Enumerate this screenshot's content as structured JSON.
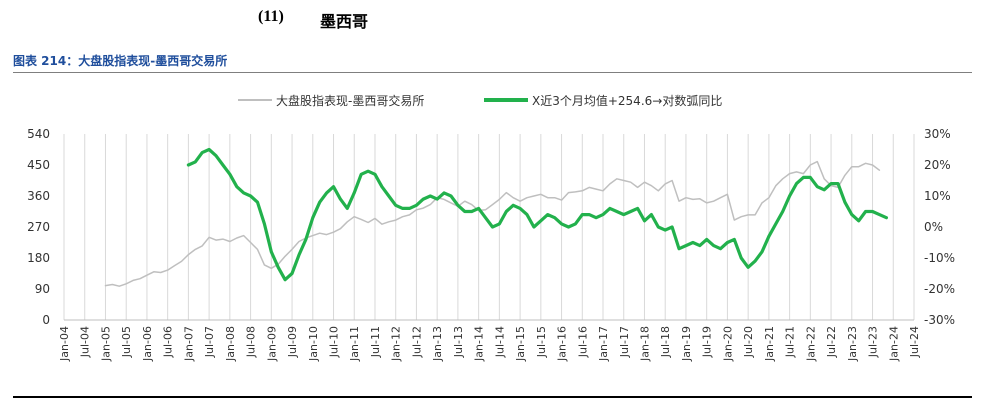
{
  "header": {
    "section_number": "(11)",
    "section_title": "墨西哥"
  },
  "figure": {
    "caption": "图表 214：大盘股指表现-墨西哥交易所"
  },
  "chart_data": {
    "type": "line",
    "title": "",
    "legend_position": "top",
    "grid": {
      "vertical": true,
      "horizontal": false
    },
    "x_axis": {
      "start": "2004-01",
      "end": "2024-07",
      "tick_labels": [
        "Jan-04",
        "Jul-04",
        "Jan-05",
        "Jul-05",
        "Jan-06",
        "Jul-06",
        "Jan-07",
        "Jul-07",
        "Jan-08",
        "Jul-08",
        "Jan-09",
        "Jul-09",
        "Jan-10",
        "Jul-10",
        "Jan-11",
        "Jul-11",
        "Jan-12",
        "Jul-12",
        "Jan-13",
        "Jul-13",
        "Jan-14",
        "Jul-14",
        "Jan-15",
        "Jul-15",
        "Jan-16",
        "Jul-16",
        "Jan-17",
        "Jul-17",
        "Jan-18",
        "Jul-18",
        "Jan-19",
        "Jul-19",
        "Jan-20",
        "Jul-20",
        "Jan-21",
        "Jul-21",
        "Jan-22",
        "Jul-22",
        "Jan-23",
        "Jul-23",
        "Jan-24",
        "Jul-24"
      ]
    },
    "y_left": {
      "min": 0,
      "max": 540,
      "ticks": [
        "0",
        "90",
        "180",
        "270",
        "360",
        "450",
        "540"
      ]
    },
    "y_right": {
      "min": -30,
      "max": 30,
      "ticks": [
        "-30%",
        "-20%",
        "-10%",
        "0%",
        "10%",
        "20%",
        "30%"
      ]
    },
    "series": [
      {
        "name": "大盘股指表现-墨西哥交易所",
        "axis": "left",
        "color": "#bfbfbf",
        "points": [
          [
            "2005-01",
            100
          ],
          [
            "2005-03",
            103
          ],
          [
            "2005-05",
            98
          ],
          [
            "2005-07",
            105
          ],
          [
            "2005-09",
            115
          ],
          [
            "2005-11",
            120
          ],
          [
            "2006-01",
            130
          ],
          [
            "2006-03",
            140
          ],
          [
            "2006-05",
            138
          ],
          [
            "2006-07",
            145
          ],
          [
            "2006-09",
            158
          ],
          [
            "2006-11",
            170
          ],
          [
            "2007-01",
            190
          ],
          [
            "2007-03",
            205
          ],
          [
            "2007-05",
            215
          ],
          [
            "2007-07",
            240
          ],
          [
            "2007-09",
            232
          ],
          [
            "2007-11",
            235
          ],
          [
            "2008-01",
            228
          ],
          [
            "2008-03",
            238
          ],
          [
            "2008-05",
            245
          ],
          [
            "2008-07",
            225
          ],
          [
            "2008-09",
            205
          ],
          [
            "2008-11",
            160
          ],
          [
            "2009-01",
            150
          ],
          [
            "2009-03",
            162
          ],
          [
            "2009-05",
            185
          ],
          [
            "2009-07",
            205
          ],
          [
            "2009-09",
            228
          ],
          [
            "2009-11",
            238
          ],
          [
            "2010-01",
            245
          ],
          [
            "2010-03",
            252
          ],
          [
            "2010-05",
            248
          ],
          [
            "2010-07",
            255
          ],
          [
            "2010-09",
            265
          ],
          [
            "2010-11",
            285
          ],
          [
            "2011-01",
            300
          ],
          [
            "2011-03",
            292
          ],
          [
            "2011-05",
            283
          ],
          [
            "2011-07",
            295
          ],
          [
            "2011-09",
            278
          ],
          [
            "2011-11",
            285
          ],
          [
            "2012-01",
            290
          ],
          [
            "2012-03",
            300
          ],
          [
            "2012-05",
            305
          ],
          [
            "2012-07",
            320
          ],
          [
            "2012-09",
            325
          ],
          [
            "2012-11",
            335
          ],
          [
            "2013-01",
            355
          ],
          [
            "2013-03",
            350
          ],
          [
            "2013-05",
            340
          ],
          [
            "2013-07",
            330
          ],
          [
            "2013-09",
            345
          ],
          [
            "2013-11",
            335
          ],
          [
            "2014-01",
            318
          ],
          [
            "2014-03",
            320
          ],
          [
            "2014-05",
            335
          ],
          [
            "2014-07",
            350
          ],
          [
            "2014-09",
            370
          ],
          [
            "2014-11",
            355
          ],
          [
            "2015-01",
            345
          ],
          [
            "2015-03",
            355
          ],
          [
            "2015-05",
            360
          ],
          [
            "2015-07",
            365
          ],
          [
            "2015-09",
            355
          ],
          [
            "2015-11",
            355
          ],
          [
            "2016-01",
            348
          ],
          [
            "2016-03",
            370
          ],
          [
            "2016-05",
            372
          ],
          [
            "2016-07",
            375
          ],
          [
            "2016-09",
            385
          ],
          [
            "2016-11",
            380
          ],
          [
            "2017-01",
            375
          ],
          [
            "2017-03",
            395
          ],
          [
            "2017-05",
            410
          ],
          [
            "2017-07",
            405
          ],
          [
            "2017-09",
            400
          ],
          [
            "2017-11",
            385
          ],
          [
            "2018-01",
            400
          ],
          [
            "2018-03",
            390
          ],
          [
            "2018-05",
            375
          ],
          [
            "2018-07",
            395
          ],
          [
            "2018-09",
            405
          ],
          [
            "2018-11",
            345
          ],
          [
            "2019-01",
            355
          ],
          [
            "2019-03",
            350
          ],
          [
            "2019-05",
            352
          ],
          [
            "2019-07",
            340
          ],
          [
            "2019-09",
            345
          ],
          [
            "2019-11",
            355
          ],
          [
            "2020-01",
            365
          ],
          [
            "2020-03",
            290
          ],
          [
            "2020-05",
            300
          ],
          [
            "2020-07",
            305
          ],
          [
            "2020-09",
            305
          ],
          [
            "2020-11",
            340
          ],
          [
            "2021-01",
            355
          ],
          [
            "2021-03",
            390
          ],
          [
            "2021-05",
            410
          ],
          [
            "2021-07",
            425
          ],
          [
            "2021-09",
            430
          ],
          [
            "2021-11",
            425
          ],
          [
            "2022-01",
            450
          ],
          [
            "2022-03",
            460
          ],
          [
            "2022-05",
            410
          ],
          [
            "2022-07",
            390
          ],
          [
            "2022-09",
            385
          ],
          [
            "2022-11",
            420
          ],
          [
            "2023-01",
            445
          ],
          [
            "2023-03",
            445
          ],
          [
            "2023-05",
            455
          ],
          [
            "2023-07",
            450
          ],
          [
            "2023-09",
            435
          ]
        ]
      },
      {
        "name": "X近3个月均值+254.6→对数弧同比",
        "axis": "right",
        "color": "#22b14c",
        "points": [
          [
            "2007-01",
            20
          ],
          [
            "2007-03",
            21
          ],
          [
            "2007-05",
            24
          ],
          [
            "2007-07",
            25
          ],
          [
            "2007-09",
            23
          ],
          [
            "2007-11",
            20
          ],
          [
            "2008-01",
            17
          ],
          [
            "2008-03",
            13
          ],
          [
            "2008-05",
            11
          ],
          [
            "2008-07",
            10
          ],
          [
            "2008-09",
            8
          ],
          [
            "2008-11",
            1
          ],
          [
            "2009-01",
            -8
          ],
          [
            "2009-03",
            -13
          ],
          [
            "2009-05",
            -17
          ],
          [
            "2009-07",
            -15
          ],
          [
            "2009-09",
            -9
          ],
          [
            "2009-11",
            -4
          ],
          [
            "2010-01",
            3
          ],
          [
            "2010-03",
            8
          ],
          [
            "2010-05",
            11
          ],
          [
            "2010-07",
            13
          ],
          [
            "2010-09",
            9
          ],
          [
            "2010-11",
            6
          ],
          [
            "2011-01",
            11
          ],
          [
            "2011-03",
            17
          ],
          [
            "2011-05",
            18
          ],
          [
            "2011-07",
            17
          ],
          [
            "2011-09",
            13
          ],
          [
            "2011-11",
            10
          ],
          [
            "2012-01",
            7
          ],
          [
            "2012-03",
            6
          ],
          [
            "2012-05",
            6
          ],
          [
            "2012-07",
            7
          ],
          [
            "2012-09",
            9
          ],
          [
            "2012-11",
            10
          ],
          [
            "2013-01",
            9
          ],
          [
            "2013-03",
            11
          ],
          [
            "2013-05",
            10
          ],
          [
            "2013-07",
            7
          ],
          [
            "2013-09",
            5
          ],
          [
            "2013-11",
            5
          ],
          [
            "2014-01",
            6
          ],
          [
            "2014-03",
            3
          ],
          [
            "2014-05",
            0
          ],
          [
            "2014-07",
            1
          ],
          [
            "2014-09",
            5
          ],
          [
            "2014-11",
            7
          ],
          [
            "2015-01",
            6
          ],
          [
            "2015-03",
            4
          ],
          [
            "2015-05",
            0
          ],
          [
            "2015-07",
            2
          ],
          [
            "2015-09",
            4
          ],
          [
            "2015-11",
            3
          ],
          [
            "2016-01",
            1
          ],
          [
            "2016-03",
            0
          ],
          [
            "2016-05",
            1
          ],
          [
            "2016-07",
            4
          ],
          [
            "2016-09",
            4
          ],
          [
            "2016-11",
            3
          ],
          [
            "2017-01",
            4
          ],
          [
            "2017-03",
            6
          ],
          [
            "2017-05",
            5
          ],
          [
            "2017-07",
            4
          ],
          [
            "2017-09",
            5
          ],
          [
            "2017-11",
            6
          ],
          [
            "2018-01",
            2
          ],
          [
            "2018-03",
            4
          ],
          [
            "2018-05",
            0
          ],
          [
            "2018-07",
            -1
          ],
          [
            "2018-09",
            0
          ],
          [
            "2018-11",
            -7
          ],
          [
            "2019-01",
            -6
          ],
          [
            "2019-03",
            -5
          ],
          [
            "2019-05",
            -6
          ],
          [
            "2019-07",
            -4
          ],
          [
            "2019-09",
            -6
          ],
          [
            "2019-11",
            -7
          ],
          [
            "2020-01",
            -5
          ],
          [
            "2020-03",
            -4
          ],
          [
            "2020-05",
            -10
          ],
          [
            "2020-07",
            -13
          ],
          [
            "2020-09",
            -11
          ],
          [
            "2020-11",
            -8
          ],
          [
            "2021-01",
            -3
          ],
          [
            "2021-03",
            1
          ],
          [
            "2021-05",
            5
          ],
          [
            "2021-07",
            10
          ],
          [
            "2021-09",
            14
          ],
          [
            "2021-11",
            16
          ],
          [
            "2022-01",
            16
          ],
          [
            "2022-03",
            13
          ],
          [
            "2022-05",
            12
          ],
          [
            "2022-07",
            14
          ],
          [
            "2022-09",
            14
          ],
          [
            "2022-11",
            8
          ],
          [
            "2023-01",
            4
          ],
          [
            "2023-03",
            2
          ],
          [
            "2023-05",
            5
          ],
          [
            "2023-07",
            5
          ],
          [
            "2023-09",
            4
          ],
          [
            "2023-11",
            3
          ]
        ]
      }
    ]
  }
}
